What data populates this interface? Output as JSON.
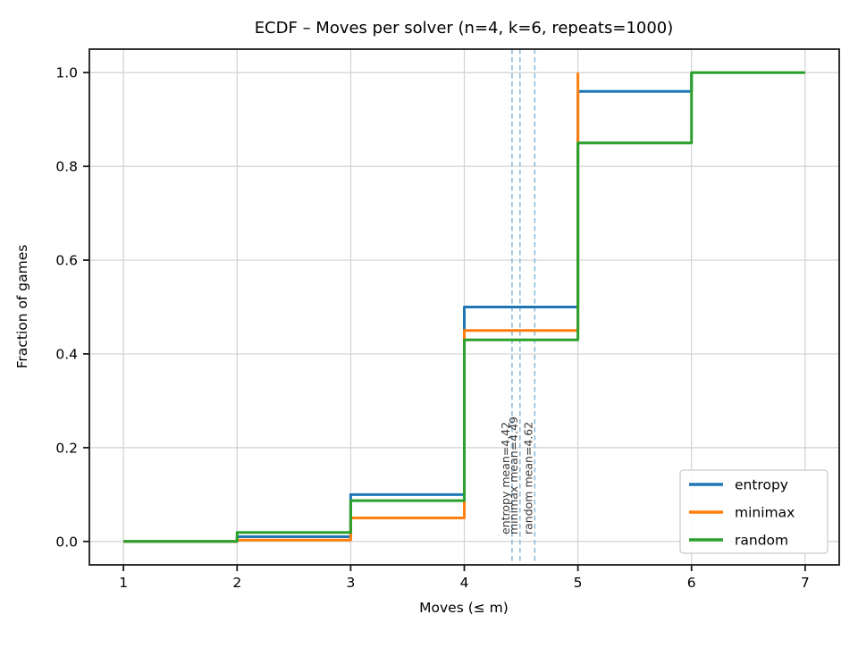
{
  "chart_data": {
    "type": "line",
    "subtype": "ecdf-step",
    "title": "ECDF – Moves per solver (n=4, k=6, repeats=1000)",
    "xlabel": "Moves (≤ m)",
    "ylabel": "Fraction of games",
    "xlim": [
      0.7,
      7.3
    ],
    "ylim": [
      -0.05,
      1.05
    ],
    "xticks": [
      1,
      2,
      3,
      4,
      5,
      6,
      7
    ],
    "yticks": [
      0.0,
      0.2,
      0.4,
      0.6,
      0.8,
      1.0
    ],
    "grid": true,
    "grid_color": "#d2d2d2",
    "spine_color": "#1a1a1a",
    "legend_position": "lower right",
    "series": [
      {
        "name": "entropy",
        "color": "#1f77b4",
        "x": [
          1,
          2,
          3,
          4,
          5,
          6
        ],
        "y": [
          0.0,
          0.01,
          0.1,
          0.5,
          0.96,
          1.0
        ]
      },
      {
        "name": "minimax",
        "color": "#ff7f0e",
        "x": [
          1,
          2,
          3,
          4,
          5
        ],
        "y": [
          0.0,
          0.003,
          0.05,
          0.45,
          1.0
        ]
      },
      {
        "name": "random",
        "color": "#2ca02c",
        "x": [
          1,
          2,
          3,
          4,
          5,
          6,
          7
        ],
        "y": [
          0.0,
          0.019,
          0.087,
          0.43,
          0.85,
          1.0,
          1.0
        ]
      }
    ],
    "mean_lines": [
      {
        "label": "entropy mean=4.42",
        "x": 4.42,
        "color": "#8fbbd9"
      },
      {
        "label": "minimax mean=4.49",
        "x": 4.49,
        "color": "#8fbbd9"
      },
      {
        "label": "random mean=4.62",
        "x": 4.62,
        "color": "#8fbbd9"
      }
    ],
    "legend": {
      "entries": [
        "entropy",
        "minimax",
        "random"
      ]
    }
  }
}
